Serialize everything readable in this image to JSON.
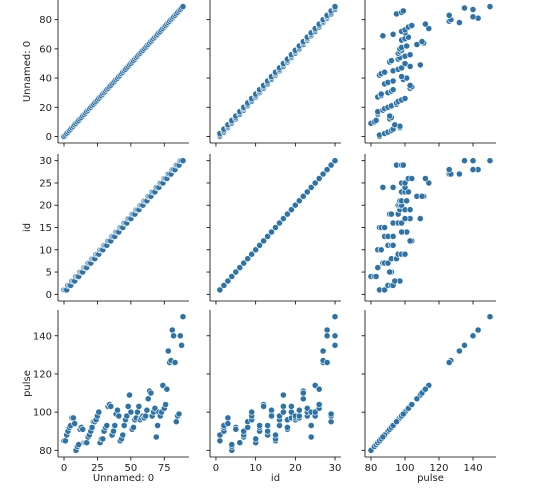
{
  "chart_data": {
    "type": "scatter",
    "kind": "pairplot",
    "variables": [
      "Unnamed: 0",
      "id",
      "pulse"
    ],
    "axis_labels": {
      "x": [
        "Unnamed: 0",
        "id",
        "pulse"
      ],
      "y": [
        "Unnamed: 0",
        "id",
        "pulse"
      ]
    },
    "ranges": {
      "Unnamed: 0": [
        -4.5,
        93.5
      ],
      "id": [
        -1.5,
        31.5
      ],
      "pulse": [
        76.5,
        153.5
      ]
    },
    "visible_ranges": {
      "y_row0": [
        -4.5,
        93.5
      ]
    },
    "ticks": {
      "x": {
        "Unnamed: 0": [
          0,
          25,
          50,
          75
        ],
        "id": [
          0,
          10,
          20,
          30
        ],
        "pulse": [
          80,
          100,
          120,
          140
        ]
      },
      "y": {
        "Unnamed: 0": [
          0,
          20,
          40,
          60,
          80
        ],
        "id": [
          0,
          5,
          10,
          15,
          20,
          25,
          30
        ],
        "pulse": [
          80,
          100,
          120,
          140
        ]
      }
    },
    "grid": false,
    "marker_color": "#2e73a7",
    "data": {
      "unnamed0": [
        0,
        1,
        2,
        3,
        4,
        5,
        6,
        7,
        8,
        9,
        10,
        11,
        12,
        13,
        14,
        15,
        16,
        17,
        18,
        19,
        20,
        21,
        22,
        23,
        24,
        25,
        26,
        27,
        28,
        29,
        30,
        31,
        32,
        33,
        34,
        35,
        36,
        37,
        38,
        39,
        40,
        41,
        42,
        43,
        44,
        45,
        46,
        47,
        48,
        49,
        50,
        51,
        52,
        53,
        54,
        55,
        56,
        57,
        58,
        59,
        60,
        61,
        62,
        63,
        64,
        65,
        66,
        67,
        68,
        69,
        70,
        71,
        72,
        73,
        74,
        75,
        76,
        77,
        78,
        79,
        80,
        81,
        82,
        83,
        84,
        85,
        86,
        87,
        88,
        89
      ],
      "id": [
        1,
        1,
        1,
        2,
        2,
        2,
        3,
        3,
        3,
        4,
        4,
        4,
        5,
        5,
        5,
        6,
        6,
        6,
        7,
        7,
        7,
        8,
        8,
        8,
        9,
        9,
        9,
        10,
        10,
        10,
        11,
        11,
        11,
        12,
        12,
        12,
        13,
        13,
        13,
        14,
        14,
        14,
        15,
        15,
        15,
        16,
        16,
        16,
        17,
        17,
        17,
        18,
        18,
        18,
        19,
        19,
        19,
        20,
        20,
        20,
        21,
        21,
        21,
        22,
        22,
        22,
        23,
        23,
        23,
        24,
        24,
        24,
        25,
        25,
        25,
        26,
        26,
        26,
        27,
        27,
        27,
        28,
        28,
        28,
        29,
        29,
        29,
        30,
        30,
        30
      ],
      "pulse": [
        85,
        85,
        88,
        90,
        92,
        93,
        97,
        97,
        94,
        80,
        82,
        83,
        91,
        92,
        91,
        84,
        84,
        84,
        87,
        88,
        90,
        92,
        95,
        95,
        96,
        98,
        100,
        84,
        86,
        86,
        90,
        92,
        93,
        103,
        104,
        103,
        88,
        90,
        93,
        99,
        101,
        98,
        85,
        86,
        88,
        93,
        96,
        98,
        103,
        109,
        100,
        91,
        92,
        96,
        97,
        100,
        103,
        96,
        97,
        98,
        97,
        98,
        101,
        107,
        111,
        110,
        98,
        100,
        102,
        87,
        93,
        100,
        98,
        100,
        114,
        102,
        104,
        112,
        132,
        126,
        127,
        143,
        140,
        126,
        95,
        98,
        99,
        140,
        135,
        150
      ]
    }
  }
}
